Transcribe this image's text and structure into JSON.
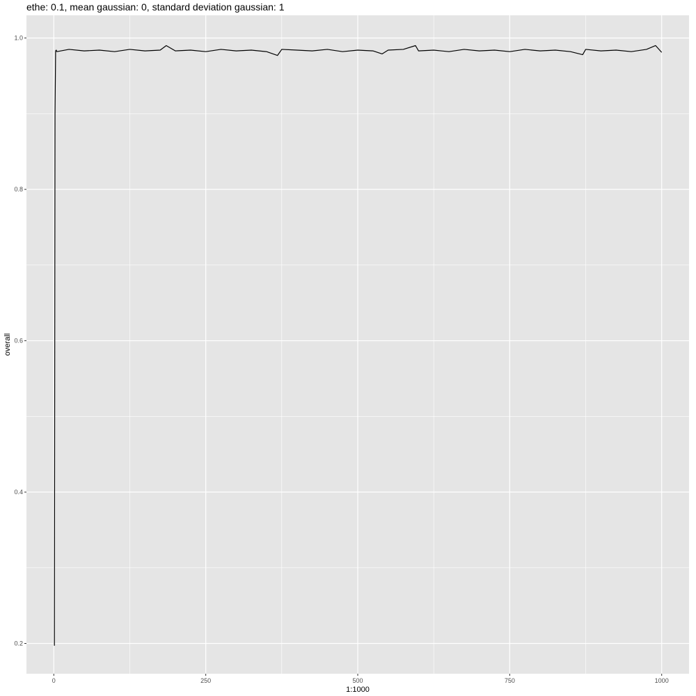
{
  "chart_data": {
    "type": "line",
    "title": "ethe: 0.1, mean gaussian: 0, standard deviation gaussian: 1",
    "xlabel": "1:1000",
    "ylabel": "overall",
    "xlim": [
      -45,
      1045
    ],
    "ylim": [
      0.16,
      1.03
    ],
    "x_ticks": [
      0,
      250,
      500,
      750,
      1000
    ],
    "y_ticks": [
      0.2,
      0.4,
      0.6,
      0.8,
      1.0
    ],
    "x_tick_labels": [
      "0",
      "250",
      "500",
      "750",
      "1000"
    ],
    "y_tick_labels": [
      "0.2",
      "0.4",
      "0.6",
      "0.8",
      "1.0"
    ],
    "grid": true,
    "legend": "none",
    "panel_color": "#e5e5e5",
    "grid_color": "#ffffff",
    "line_color": "#000000",
    "series": [
      {
        "x": [
          1,
          2,
          3,
          4,
          5,
          25,
          50,
          75,
          100,
          125,
          150,
          175,
          185,
          200,
          225,
          250,
          275,
          300,
          325,
          350,
          368,
          375,
          400,
          425,
          450,
          475,
          500,
          525,
          540,
          550,
          575,
          595,
          600,
          625,
          650,
          675,
          700,
          725,
          750,
          775,
          800,
          825,
          850,
          870,
          875,
          900,
          925,
          950,
          975,
          990,
          1000
        ],
        "values": [
          0.197,
          0.9,
          0.983,
          0.984,
          0.982,
          0.985,
          0.983,
          0.984,
          0.982,
          0.985,
          0.983,
          0.984,
          0.99,
          0.983,
          0.984,
          0.982,
          0.985,
          0.983,
          0.984,
          0.982,
          0.977,
          0.985,
          0.984,
          0.983,
          0.985,
          0.982,
          0.984,
          0.983,
          0.979,
          0.984,
          0.985,
          0.99,
          0.983,
          0.984,
          0.982,
          0.985,
          0.983,
          0.984,
          0.982,
          0.985,
          0.983,
          0.984,
          0.982,
          0.978,
          0.985,
          0.983,
          0.984,
          0.982,
          0.985,
          0.99,
          0.981
        ]
      }
    ]
  }
}
